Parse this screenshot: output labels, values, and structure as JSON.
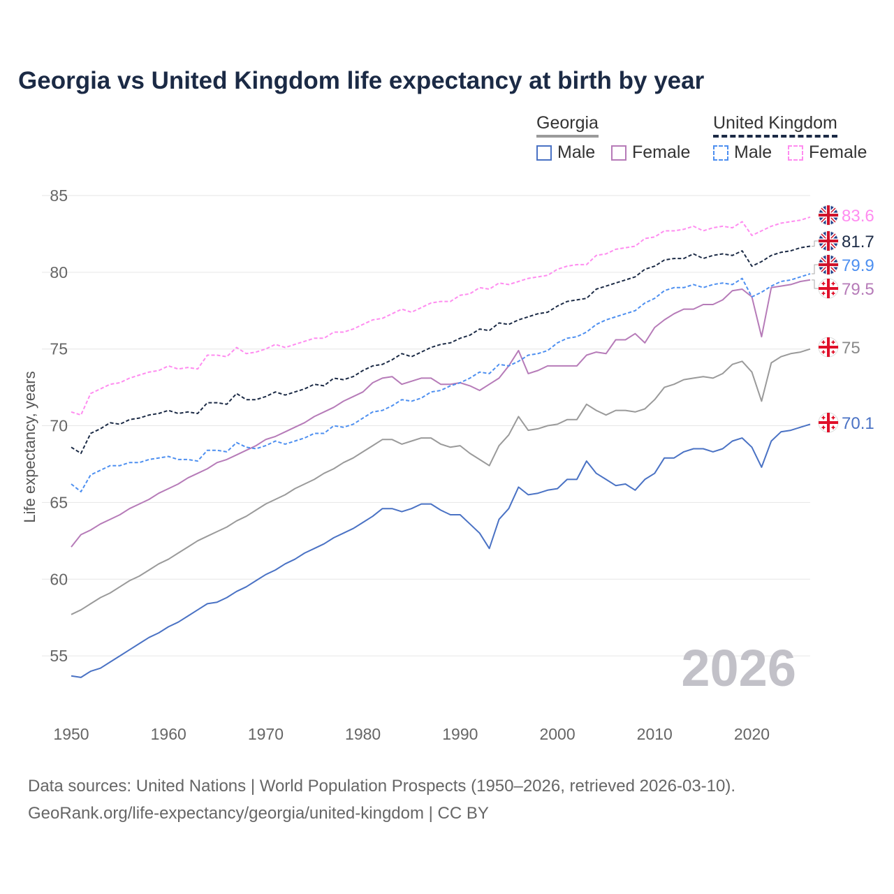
{
  "title": "Georgia vs United Kingdom life expectancy at birth by year",
  "legend": {
    "groups": [
      {
        "name": "Georgia",
        "items": [
          {
            "label": "Male",
            "color": "#4a72c4"
          },
          {
            "label": "Female",
            "color": "#b67bb8"
          }
        ],
        "total_color": "#9a9a9a"
      },
      {
        "name": "United Kingdom",
        "items": [
          {
            "label": "Male",
            "color": "#4d8ff0"
          },
          {
            "label": "Female",
            "color": "#ff8cf0"
          }
        ],
        "total_color": "#1b2a45"
      }
    ]
  },
  "watermark_year": "2026",
  "footer": {
    "line1": "Data sources: United Nations | World Population Prospects (1950–2026, retrieved 2026-03-10).",
    "line2": "GeoRank.org/life-expectancy/georgia/united-kingdom | CC BY"
  },
  "chart_data": {
    "type": "line",
    "title": "Georgia vs United Kingdom life expectancy at birth by year",
    "xlabel": "",
    "ylabel": "Life expectancy, years",
    "xlim": [
      1950,
      2026
    ],
    "ylim": [
      52,
      86
    ],
    "xticks": [
      1950,
      1960,
      1970,
      1980,
      1990,
      2000,
      2010,
      2020
    ],
    "yticks": [
      55,
      60,
      65,
      70,
      75,
      80,
      85
    ],
    "grid": true,
    "legend_placement": "top-right",
    "x_start": 1950,
    "series": [
      {
        "name": "United Kingdom Female",
        "country": "uk",
        "color": "#ff8cf0",
        "dashed": true,
        "end_label": "83.6",
        "values": [
          70.9,
          70.7,
          72.1,
          72.4,
          72.7,
          72.8,
          73.1,
          73.3,
          73.5,
          73.6,
          73.9,
          73.7,
          73.8,
          73.7,
          74.6,
          74.6,
          74.5,
          75.1,
          74.7,
          74.8,
          75.0,
          75.3,
          75.1,
          75.3,
          75.5,
          75.7,
          75.7,
          76.1,
          76.1,
          76.3,
          76.6,
          76.9,
          77.0,
          77.3,
          77.6,
          77.4,
          77.7,
          78.0,
          78.1,
          78.1,
          78.5,
          78.6,
          79.0,
          78.9,
          79.3,
          79.2,
          79.4,
          79.6,
          79.7,
          79.8,
          80.2,
          80.4,
          80.5,
          80.5,
          81.1,
          81.2,
          81.5,
          81.6,
          81.7,
          82.2,
          82.3,
          82.7,
          82.7,
          82.8,
          83.0,
          82.7,
          82.9,
          83.0,
          82.9,
          83.3,
          82.4,
          82.7,
          83.0,
          83.2,
          83.3,
          83.4,
          83.6
        ]
      },
      {
        "name": "United Kingdom Total",
        "country": "uk",
        "color": "#1b2a45",
        "dashed": true,
        "end_label": "81.7",
        "values": [
          68.6,
          68.2,
          69.5,
          69.8,
          70.2,
          70.1,
          70.4,
          70.5,
          70.7,
          70.8,
          71.0,
          70.8,
          70.9,
          70.8,
          71.5,
          71.5,
          71.4,
          72.1,
          71.7,
          71.7,
          71.9,
          72.2,
          72.0,
          72.2,
          72.4,
          72.7,
          72.6,
          73.1,
          73.0,
          73.2,
          73.6,
          73.9,
          74.0,
          74.3,
          74.7,
          74.5,
          74.8,
          75.1,
          75.3,
          75.4,
          75.7,
          75.9,
          76.3,
          76.2,
          76.7,
          76.6,
          76.9,
          77.1,
          77.3,
          77.4,
          77.8,
          78.1,
          78.2,
          78.3,
          78.9,
          79.1,
          79.3,
          79.5,
          79.7,
          80.2,
          80.4,
          80.8,
          80.9,
          80.9,
          81.2,
          80.9,
          81.1,
          81.2,
          81.1,
          81.4,
          80.4,
          80.7,
          81.1,
          81.3,
          81.4,
          81.6,
          81.7
        ]
      },
      {
        "name": "United Kingdom Male",
        "country": "uk",
        "color": "#4d8ff0",
        "dashed": true,
        "end_label": "79.9",
        "values": [
          66.2,
          65.7,
          66.8,
          67.1,
          67.4,
          67.4,
          67.6,
          67.6,
          67.8,
          67.9,
          68.0,
          67.8,
          67.8,
          67.7,
          68.4,
          68.4,
          68.3,
          68.9,
          68.6,
          68.5,
          68.7,
          69.0,
          68.8,
          69.0,
          69.2,
          69.5,
          69.5,
          70.0,
          69.9,
          70.1,
          70.5,
          70.9,
          71.0,
          71.3,
          71.7,
          71.6,
          71.8,
          72.2,
          72.3,
          72.6,
          72.8,
          73.1,
          73.5,
          73.4,
          74.0,
          73.9,
          74.2,
          74.6,
          74.7,
          74.9,
          75.4,
          75.7,
          75.8,
          76.1,
          76.6,
          76.9,
          77.1,
          77.3,
          77.5,
          78.0,
          78.3,
          78.8,
          79.0,
          79.0,
          79.2,
          79.0,
          79.2,
          79.3,
          79.2,
          79.6,
          78.4,
          78.7,
          79.1,
          79.4,
          79.5,
          79.7,
          79.9
        ]
      },
      {
        "name": "Georgia Female",
        "country": "ge",
        "color": "#b67bb8",
        "dashed": false,
        "end_label": "79.5",
        "values": [
          62.1,
          62.9,
          63.2,
          63.6,
          63.9,
          64.2,
          64.6,
          64.9,
          65.2,
          65.6,
          65.9,
          66.2,
          66.6,
          66.9,
          67.2,
          67.6,
          67.8,
          68.1,
          68.4,
          68.7,
          69.1,
          69.3,
          69.6,
          69.9,
          70.2,
          70.6,
          70.9,
          71.2,
          71.6,
          71.9,
          72.2,
          72.8,
          73.1,
          73.2,
          72.7,
          72.9,
          73.1,
          73.1,
          72.7,
          72.7,
          72.8,
          72.6,
          72.3,
          72.7,
          73.1,
          73.9,
          74.9,
          73.4,
          73.6,
          73.9,
          73.9,
          73.9,
          73.9,
          74.6,
          74.8,
          74.7,
          75.6,
          75.6,
          76.0,
          75.4,
          76.4,
          76.9,
          77.3,
          77.6,
          77.6,
          77.9,
          77.9,
          78.2,
          78.8,
          78.9,
          78.4,
          75.8,
          79.0,
          79.1,
          79.2,
          79.4,
          79.5
        ]
      },
      {
        "name": "Georgia Total",
        "country": "ge",
        "color": "#9a9a9a",
        "dashed": false,
        "end_label": "75",
        "values": [
          57.7,
          58.0,
          58.4,
          58.8,
          59.1,
          59.5,
          59.9,
          60.2,
          60.6,
          61.0,
          61.3,
          61.7,
          62.1,
          62.5,
          62.8,
          63.1,
          63.4,
          63.8,
          64.1,
          64.5,
          64.9,
          65.2,
          65.5,
          65.9,
          66.2,
          66.5,
          66.9,
          67.2,
          67.6,
          67.9,
          68.3,
          68.7,
          69.1,
          69.1,
          68.8,
          69.0,
          69.2,
          69.2,
          68.8,
          68.6,
          68.7,
          68.2,
          67.8,
          67.4,
          68.7,
          69.4,
          70.6,
          69.7,
          69.8,
          70.0,
          70.1,
          70.4,
          70.4,
          71.4,
          71.0,
          70.7,
          71.0,
          71.0,
          70.9,
          71.1,
          71.7,
          72.5,
          72.7,
          73.0,
          73.1,
          73.2,
          73.1,
          73.4,
          74.0,
          74.2,
          73.5,
          71.6,
          74.1,
          74.5,
          74.7,
          74.8,
          75.0
        ]
      },
      {
        "name": "Georgia Male",
        "country": "ge",
        "color": "#4a72c4",
        "dashed": false,
        "end_label": "70.1",
        "values": [
          53.7,
          53.6,
          54.0,
          54.2,
          54.6,
          55.0,
          55.4,
          55.8,
          56.2,
          56.5,
          56.9,
          57.2,
          57.6,
          58.0,
          58.4,
          58.5,
          58.8,
          59.2,
          59.5,
          59.9,
          60.3,
          60.6,
          61.0,
          61.3,
          61.7,
          62.0,
          62.3,
          62.7,
          63.0,
          63.3,
          63.7,
          64.1,
          64.6,
          64.6,
          64.4,
          64.6,
          64.9,
          64.9,
          64.5,
          64.2,
          64.2,
          63.6,
          63.0,
          62.0,
          63.9,
          64.6,
          66.0,
          65.5,
          65.6,
          65.8,
          65.9,
          66.5,
          66.5,
          67.7,
          66.9,
          66.5,
          66.1,
          66.2,
          65.8,
          66.5,
          66.9,
          67.9,
          67.9,
          68.3,
          68.5,
          68.5,
          68.3,
          68.5,
          69.0,
          69.2,
          68.6,
          67.3,
          69.0,
          69.6,
          69.7,
          69.9,
          70.1
        ]
      }
    ]
  }
}
